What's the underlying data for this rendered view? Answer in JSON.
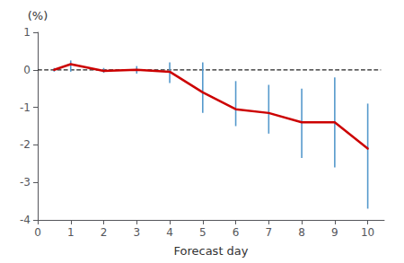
{
  "chart_data": {
    "type": "line",
    "x": [
      0.5,
      1,
      2,
      3,
      4,
      5,
      6,
      7,
      8,
      9,
      10
    ],
    "series": [
      {
        "values": [
          0.0,
          0.15,
          -0.03,
          0.0,
          -0.05,
          -0.6,
          -1.05,
          -1.15,
          -1.4,
          -1.4,
          -2.1
        ],
        "color": "#cc0000"
      }
    ],
    "error_bars": {
      "low": [
        -0.05,
        -0.05,
        -0.08,
        -0.1,
        -0.35,
        -1.15,
        -1.5,
        -1.7,
        -2.35,
        -2.6,
        -3.7
      ],
      "high": [
        0.05,
        0.25,
        0.05,
        0.1,
        0.2,
        0.2,
        -0.3,
        -0.4,
        -0.5,
        -0.2,
        -0.9
      ],
      "color": "#5599cc"
    },
    "hline": {
      "y": 0,
      "x": [
        0,
        10.4
      ],
      "color": "#222222",
      "line_style": "dashed"
    },
    "xlabel": "Forecast day",
    "ylabel": "(%)",
    "xlim": [
      0,
      10.5
    ],
    "ylim": [
      -4,
      1
    ],
    "xticks": [
      0,
      1,
      2,
      3,
      4,
      5,
      6,
      7,
      8,
      9,
      10
    ],
    "yticks": [
      1,
      0,
      -1,
      -2,
      -3,
      -4
    ],
    "grid": false
  }
}
